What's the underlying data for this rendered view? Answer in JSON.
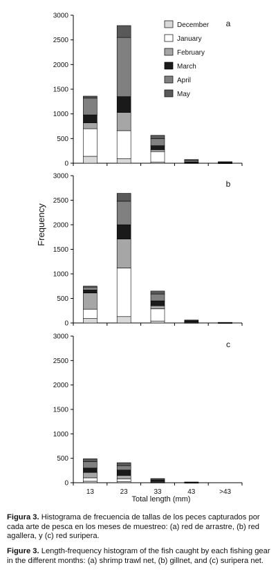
{
  "chart_data": [
    {
      "type": "bar",
      "stacked": true,
      "panel_label": "a",
      "categories": [
        "13",
        "23",
        "33",
        "43",
        ">43"
      ],
      "ylim": [
        0,
        3000
      ],
      "yticks": [
        0,
        500,
        1000,
        1500,
        2000,
        2500,
        3000
      ],
      "series": [
        {
          "name": "December",
          "color": "#d9d9d9",
          "values": [
            140,
            90,
            25,
            5,
            3
          ]
        },
        {
          "name": "January",
          "color": "#ffffff",
          "values": [
            560,
            570,
            210,
            5,
            5
          ]
        },
        {
          "name": "February",
          "color": "#a6a6a6",
          "values": [
            120,
            370,
            40,
            5,
            4
          ]
        },
        {
          "name": "March",
          "color": "#1a1a1a",
          "values": [
            160,
            320,
            80,
            10,
            5
          ]
        },
        {
          "name": "April",
          "color": "#808080",
          "values": [
            340,
            1200,
            140,
            30,
            8
          ]
        },
        {
          "name": "May",
          "color": "#595959",
          "values": [
            40,
            240,
            70,
            20,
            5
          ]
        }
      ]
    },
    {
      "type": "bar",
      "stacked": true,
      "panel_label": "b",
      "categories": [
        "13",
        "23",
        "33",
        "43",
        ">43"
      ],
      "ylim": [
        0,
        3000
      ],
      "yticks": [
        0,
        500,
        1000,
        1500,
        2000,
        2500,
        3000
      ],
      "series": [
        {
          "name": "December",
          "color": "#d9d9d9",
          "values": [
            90,
            130,
            40,
            5,
            2
          ]
        },
        {
          "name": "January",
          "color": "#ffffff",
          "values": [
            190,
            990,
            250,
            5,
            2
          ]
        },
        {
          "name": "February",
          "color": "#a6a6a6",
          "values": [
            330,
            590,
            60,
            10,
            2
          ]
        },
        {
          "name": "March",
          "color": "#1a1a1a",
          "values": [
            60,
            290,
            100,
            15,
            2
          ]
        },
        {
          "name": "April",
          "color": "#808080",
          "values": [
            60,
            480,
            140,
            15,
            2
          ]
        },
        {
          "name": "May",
          "color": "#595959",
          "values": [
            20,
            160,
            60,
            10,
            2
          ]
        }
      ]
    },
    {
      "type": "bar",
      "stacked": true,
      "panel_label": "c",
      "categories": [
        "13",
        "23",
        "33",
        "43",
        ">43"
      ],
      "ylim": [
        0,
        3000
      ],
      "yticks": [
        0,
        500,
        1000,
        1500,
        2000,
        2500,
        3000
      ],
      "series": [
        {
          "name": "December",
          "color": "#d9d9d9",
          "values": [
            30,
            20,
            5,
            2,
            0
          ]
        },
        {
          "name": "January",
          "color": "#ffffff",
          "values": [
            70,
            60,
            10,
            2,
            0
          ]
        },
        {
          "name": "February",
          "color": "#a6a6a6",
          "values": [
            110,
            70,
            15,
            3,
            0
          ]
        },
        {
          "name": "March",
          "color": "#1a1a1a",
          "values": [
            90,
            110,
            20,
            3,
            0
          ]
        },
        {
          "name": "April",
          "color": "#808080",
          "values": [
            130,
            90,
            20,
            2,
            0
          ]
        },
        {
          "name": "May",
          "color": "#595959",
          "values": [
            60,
            60,
            15,
            2,
            0
          ]
        }
      ]
    }
  ],
  "ylabel": "Frequency",
  "xlabel": "Total length (mm)",
  "caption_es": {
    "label": "Figura 3.",
    "text": "Histograma de frecuencia de tallas de los peces capturados por cada arte de pesca en los meses de muestreo: (a) red de arrastre, (b) red agallera, y (c) red suripera."
  },
  "caption_en": {
    "label": "Figure 3.",
    "text": "Length-frequency histogram of the fish caught by each fishing gear in the different months: (a) shrimp trawl net, (b) gillnet, and (c) suripera net."
  }
}
